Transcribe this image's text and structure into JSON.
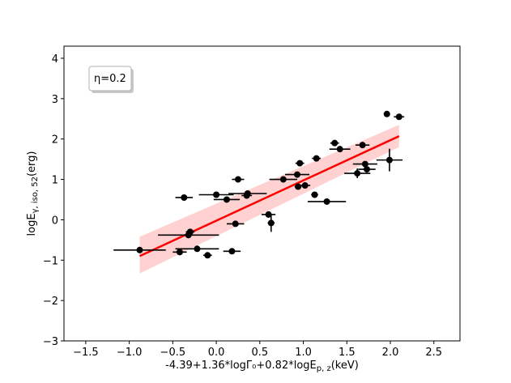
{
  "chart_data": {
    "type": "scatter",
    "xlabel": "-4.39+1.36*logΓ₀+0.82*logE",
    "xlabel_sub": "p, z",
    "xlabel_unit": "(keV)",
    "ylabel": "logE",
    "ylabel_sub": "γ, iso, 52",
    "ylabel_unit": "(erg)",
    "xlim": [
      -1.75,
      2.8
    ],
    "ylim": [
      -3,
      4.3
    ],
    "xticks": [
      -1.5,
      -1.0,
      -0.5,
      0.0,
      0.5,
      1.0,
      1.5,
      2.0,
      2.5
    ],
    "xtick_labels": [
      "−1.5",
      "−1.0",
      "−0.5",
      "0.0",
      "0.5",
      "1.0",
      "1.5",
      "2.0",
      "2.5"
    ],
    "yticks": [
      -3,
      -2,
      -1,
      0,
      1,
      2,
      3,
      4
    ],
    "ytick_labels": [
      "−3",
      "−2",
      "−1",
      "0",
      "1",
      "2",
      "3",
      "4"
    ],
    "grid": false,
    "legend": {
      "text": "η=0.2",
      "placement": "top-left"
    },
    "colors": {
      "points": "#000000",
      "fit": "#ff0000",
      "band": "#ffb3b3"
    },
    "points": [
      {
        "x": -0.88,
        "y": -0.75,
        "xerr": 0.3,
        "yerr": 0.0
      },
      {
        "x": -0.42,
        "y": -0.8,
        "xerr": 0.08,
        "yerr": 0.08
      },
      {
        "x": -0.32,
        "y": -0.38,
        "xerr": 0.35,
        "yerr": 0.06
      },
      {
        "x": -0.3,
        "y": -0.3,
        "xerr": 0.05,
        "yerr": 0.05
      },
      {
        "x": -0.22,
        "y": -0.72,
        "xerr": 0.25,
        "yerr": 0.0
      },
      {
        "x": -0.1,
        "y": -0.88,
        "xerr": 0.05,
        "yerr": 0.05
      },
      {
        "x": 0.18,
        "y": -0.78,
        "xerr": 0.1,
        "yerr": 0.0
      },
      {
        "x": 0.22,
        "y": -0.1,
        "xerr": 0.1,
        "yerr": 0.0
      },
      {
        "x": -0.37,
        "y": 0.55,
        "xerr": 0.1,
        "yerr": 0.0
      },
      {
        "x": 0.0,
        "y": 0.62,
        "xerr": 0.2,
        "yerr": 0.0
      },
      {
        "x": 0.12,
        "y": 0.5,
        "xerr": 0.15,
        "yerr": 0.0
      },
      {
        "x": 0.25,
        "y": 1.0,
        "xerr": 0.07,
        "yerr": 0.0
      },
      {
        "x": 0.35,
        "y": 0.6,
        "xerr": 0.06,
        "yerr": 0.06
      },
      {
        "x": 0.36,
        "y": 0.65,
        "xerr": 0.22,
        "yerr": 0.0
      },
      {
        "x": 0.6,
        "y": 0.13,
        "xerr": 0.08,
        "yerr": 0.08
      },
      {
        "x": 0.63,
        "y": -0.08,
        "xerr": 0.04,
        "yerr": 0.22
      },
      {
        "x": 0.77,
        "y": 1.0,
        "xerr": 0.16,
        "yerr": 0.0
      },
      {
        "x": 0.93,
        "y": 1.12,
        "xerr": 0.14,
        "yerr": 0.0
      },
      {
        "x": 0.94,
        "y": 0.82,
        "xerr": 0.04,
        "yerr": 0.04
      },
      {
        "x": 0.96,
        "y": 1.4,
        "xerr": 0.05,
        "yerr": 0.0
      },
      {
        "x": 1.02,
        "y": 0.85,
        "xerr": 0.06,
        "yerr": 0.0
      },
      {
        "x": 1.13,
        "y": 0.62,
        "xerr": 0.04,
        "yerr": 0.0
      },
      {
        "x": 1.15,
        "y": 1.52,
        "xerr": 0.05,
        "yerr": 0.0
      },
      {
        "x": 1.27,
        "y": 0.45,
        "xerr": 0.22,
        "yerr": 0.0
      },
      {
        "x": 1.36,
        "y": 1.9,
        "xerr": 0.05,
        "yerr": 0.0
      },
      {
        "x": 1.42,
        "y": 1.75,
        "xerr": 0.12,
        "yerr": 0.0
      },
      {
        "x": 1.62,
        "y": 1.15,
        "xerr": 0.15,
        "yerr": 0.12
      },
      {
        "x": 1.68,
        "y": 1.85,
        "xerr": 0.08,
        "yerr": 0.0
      },
      {
        "x": 1.71,
        "y": 1.38,
        "xerr": 0.14,
        "yerr": 0.0
      },
      {
        "x": 1.73,
        "y": 1.25,
        "xerr": 0.1,
        "yerr": 0.0
      },
      {
        "x": 1.96,
        "y": 2.62,
        "xerr": 0.0,
        "yerr": 0.0
      },
      {
        "x": 1.99,
        "y": 1.48,
        "xerr": 0.15,
        "yerr": 0.28
      },
      {
        "x": 2.1,
        "y": 2.55,
        "xerr": 0.06,
        "yerr": 0.0
      }
    ],
    "fit": {
      "x": [
        -0.88,
        2.1
      ],
      "y": [
        -0.9,
        2.07
      ]
    },
    "band": {
      "x": [
        -0.88,
        2.1
      ],
      "upper": [
        -0.42,
        2.35
      ],
      "lower": [
        -1.33,
        1.8
      ]
    }
  }
}
